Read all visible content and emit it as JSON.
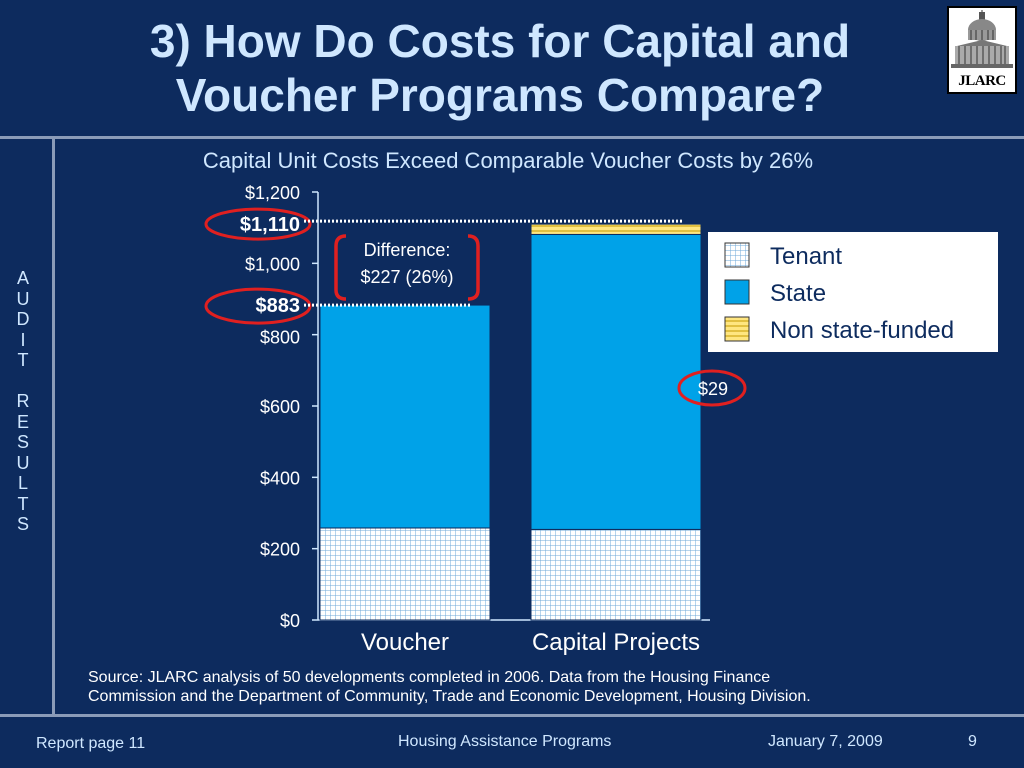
{
  "slide": {
    "title_line1": "3) How Do Costs for Capital and",
    "title_line2": "Voucher Programs Compare?",
    "side_label": [
      "A",
      "U",
      "D",
      "I",
      "T",
      "",
      "R",
      "E",
      "S",
      "U",
      "L",
      "T",
      "S"
    ],
    "logo_text": "JLARC",
    "source_line1": "Source:  JLARC analysis of 50 developments completed in 2006.  Data from the Housing Finance",
    "source_line2": "Commission and the Department of Community, Trade and Economic Development, Housing Division.",
    "footer": {
      "report_page": "Report page 11",
      "program": "Housing Assistance Programs",
      "date": "January 7, 2009",
      "page_number": "9"
    }
  },
  "chart_data": {
    "type": "bar",
    "stacked": true,
    "title": "Capital Unit Costs Exceed Comparable Voucher Costs by 26%",
    "categories": [
      "Voucher",
      "Capital Projects"
    ],
    "ylim": [
      0,
      1200
    ],
    "yticks": [
      0,
      200,
      400,
      600,
      800,
      1000,
      1200
    ],
    "ytick_labels": [
      "$0",
      "$200",
      "$400",
      "$600",
      "$800",
      "$1,000",
      "$1,200"
    ],
    "series": [
      {
        "name": "Tenant",
        "color": "#ffffff",
        "pattern": "grid",
        "values": [
          258,
          254
        ]
      },
      {
        "name": "State",
        "color": "#00a2e8",
        "pattern": "solid",
        "values": [
          625,
          827
        ]
      },
      {
        "name": "Non state-funded",
        "color": "#ffe680",
        "pattern": "stripes",
        "values": [
          0,
          29
        ]
      }
    ],
    "totals": [
      883,
      1110
    ],
    "total_labels": [
      "$883",
      "$1,110"
    ],
    "segment_label": "$29",
    "annotation_line1": "Difference:",
    "annotation_line2": "$227 (26%)",
    "legend_placement": "top-right",
    "grid": false
  }
}
